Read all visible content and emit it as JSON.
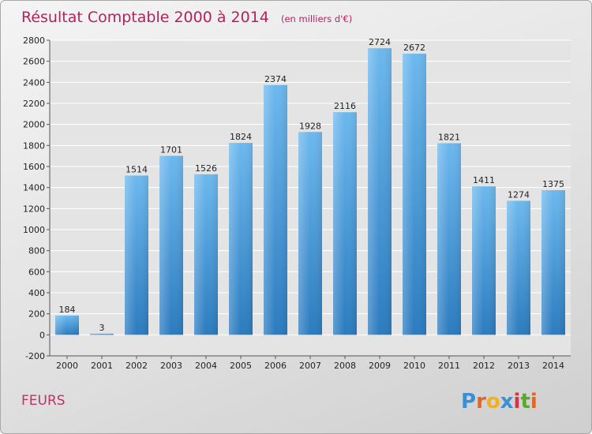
{
  "chart_data": {
    "type": "bar",
    "title": "Résultat Comptable 2000 à 2014",
    "subtitle": "(en milliers d'€)",
    "categories": [
      "2000",
      "2001",
      "2002",
      "2003",
      "2004",
      "2005",
      "2006",
      "2007",
      "2008",
      "2009",
      "2010",
      "2011",
      "2012",
      "2013",
      "2014"
    ],
    "values": [
      184,
      3,
      1514,
      1701,
      1526,
      1824,
      2374,
      1928,
      2116,
      2724,
      2672,
      1821,
      1411,
      1274,
      1375
    ],
    "ylim": [
      -200,
      2800
    ],
    "yticks": [
      -200,
      0,
      200,
      400,
      600,
      800,
      1000,
      1200,
      1400,
      1600,
      1800,
      2000,
      2200,
      2400,
      2600,
      2800
    ],
    "grid": true,
    "xlabel": "",
    "ylabel": ""
  },
  "place": "FEURS",
  "brand": {
    "letters": [
      "P",
      "r",
      "o",
      "x",
      "i",
      "t",
      "i"
    ],
    "colors": [
      "#3a8fd6",
      "#e0662a",
      "#f0b020",
      "#3a8fd6",
      "#d4334d",
      "#5aa832",
      "#e0662a"
    ]
  },
  "colors": {
    "bar_light": "#6cb8ee",
    "bar_dark": "#2a7bbf",
    "title": "#b0245e",
    "grid": "#ffffff"
  }
}
